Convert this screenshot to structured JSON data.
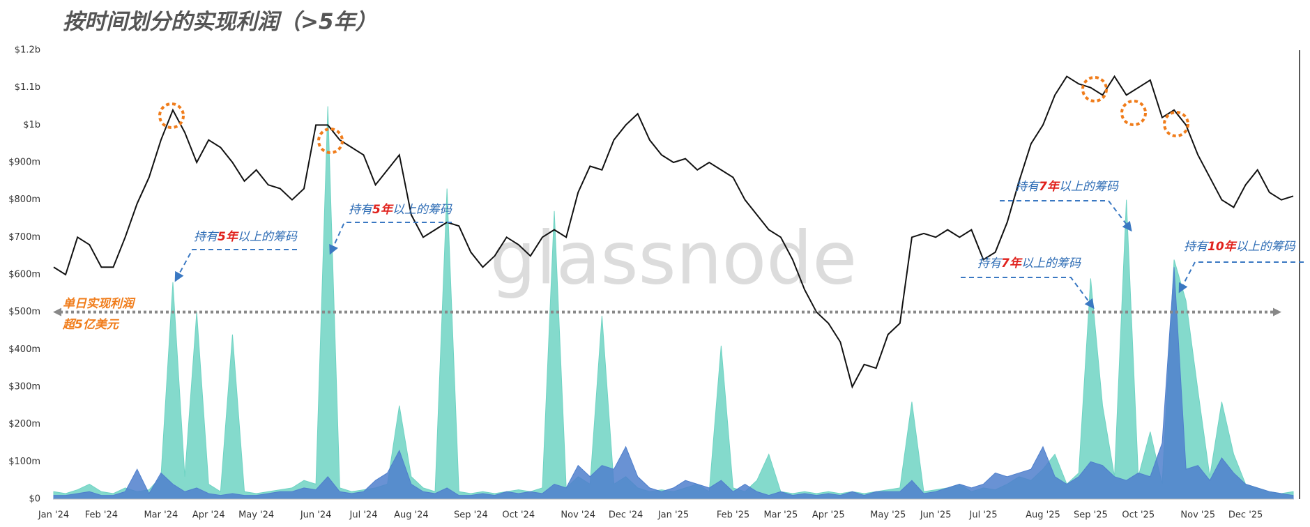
{
  "chart_data": {
    "type": "area",
    "title": "按时间划分的实现利润（>5年）",
    "watermark": "glassnode",
    "categories": [
      "Jan '24",
      null,
      null,
      null,
      "Feb '24",
      null,
      null,
      null,
      null,
      "Mar '24",
      null,
      null,
      null,
      "Apr '24",
      null,
      null,
      null,
      "May '24",
      null,
      null,
      null,
      null,
      "Jun '24",
      null,
      null,
      null,
      "Jul '24",
      null,
      null,
      null,
      "Aug '24",
      null,
      null,
      null,
      null,
      "Sep '24",
      null,
      null,
      null,
      "Oct '24",
      null,
      null,
      null,
      null,
      "Nov '24",
      null,
      null,
      null,
      "Dec '24",
      null,
      null,
      null,
      "Jan '25",
      null,
      null,
      null,
      null,
      "Feb '25",
      null,
      null,
      null,
      "Mar '25",
      null,
      null,
      null,
      "Apr '25",
      null,
      null,
      null,
      null,
      "May '25",
      null,
      null,
      null,
      "Jun '25",
      null,
      null,
      null,
      "Jul '25",
      null,
      null,
      null,
      null,
      "Aug '25",
      null,
      null,
      null,
      "Sep '25",
      null,
      null,
      null,
      "Oct '25",
      null,
      null,
      null,
      null,
      "Nov '25",
      null,
      null,
      null,
      "Dec '25",
      null,
      null,
      null,
      null
    ],
    "series": [
      {
        "type": "area",
        "color": "#6fd3c3",
        "values": [
          20,
          15,
          25,
          40,
          20,
          15,
          30,
          20,
          25,
          60,
          580,
          60,
          500,
          40,
          20,
          440,
          20,
          15,
          20,
          25,
          30,
          50,
          40,
          1050,
          30,
          20,
          25,
          30,
          40,
          250,
          60,
          30,
          20,
          830,
          20,
          15,
          20,
          15,
          20,
          25,
          20,
          30,
          770,
          30,
          60,
          40,
          490,
          40,
          60,
          30,
          20,
          25,
          20,
          30,
          40,
          20,
          410,
          30,
          20,
          50,
          120,
          20,
          15,
          20,
          15,
          20,
          15,
          20,
          15,
          20,
          25,
          30,
          260,
          20,
          25,
          30,
          40,
          20,
          30,
          25,
          40,
          60,
          50,
          80,
          120,
          40,
          70,
          590,
          250,
          60,
          800,
          60,
          180,
          40,
          640,
          530,
          290,
          60,
          260,
          120,
          40,
          30,
          20,
          15,
          20
        ]
      },
      {
        "type": "area",
        "color": "#4f7fcc",
        "values": [
          10,
          10,
          15,
          20,
          10,
          10,
          20,
          80,
          15,
          70,
          40,
          20,
          30,
          15,
          10,
          15,
          10,
          10,
          15,
          20,
          20,
          30,
          25,
          60,
          20,
          15,
          20,
          50,
          70,
          130,
          40,
          20,
          15,
          30,
          10,
          10,
          15,
          10,
          20,
          15,
          20,
          15,
          40,
          30,
          90,
          60,
          90,
          80,
          140,
          60,
          30,
          20,
          30,
          50,
          40,
          30,
          50,
          20,
          40,
          20,
          10,
          20,
          10,
          15,
          10,
          15,
          10,
          20,
          10,
          20,
          20,
          20,
          50,
          15,
          20,
          30,
          40,
          30,
          40,
          70,
          60,
          70,
          80,
          140,
          60,
          40,
          60,
          100,
          90,
          60,
          50,
          70,
          60,
          150,
          620,
          80,
          90,
          50,
          110,
          70,
          40,
          30,
          20,
          15,
          10
        ]
      },
      {
        "type": "line",
        "color": "#111111",
        "values": [
          620,
          600,
          700,
          680,
          620,
          620,
          700,
          790,
          860,
          960,
          1040,
          980,
          900,
          960,
          940,
          900,
          850,
          880,
          840,
          830,
          800,
          830,
          1000,
          1000,
          960,
          940,
          920,
          840,
          880,
          920,
          760,
          700,
          720,
          740,
          730,
          660,
          620,
          650,
          700,
          680,
          650,
          700,
          720,
          700,
          820,
          890,
          880,
          960,
          1000,
          1030,
          960,
          920,
          900,
          910,
          880,
          900,
          880,
          860,
          800,
          760,
          720,
          700,
          640,
          560,
          500,
          470,
          420,
          300,
          360,
          350,
          440,
          470,
          700,
          710,
          700,
          720,
          700,
          720,
          640,
          660,
          740,
          850,
          950,
          1000,
          1080,
          1130,
          1110,
          1100,
          1080,
          1130,
          1080,
          1100,
          1120,
          1020,
          1040,
          1000,
          920,
          860,
          800,
          780,
          840,
          880,
          820,
          800,
          810
        ]
      }
    ],
    "ylim": [
      0,
      1200
    ],
    "yticks": [
      {
        "value": 0,
        "label": "$0"
      },
      {
        "value": 100,
        "label": "$100m"
      },
      {
        "value": 200,
        "label": "$200m"
      },
      {
        "value": 300,
        "label": "$300m"
      },
      {
        "value": 400,
        "label": "$400m"
      },
      {
        "value": 500,
        "label": "$500m"
      },
      {
        "value": 600,
        "label": "$600m"
      },
      {
        "value": 700,
        "label": "$700m"
      },
      {
        "value": 800,
        "label": "$800m"
      },
      {
        "value": 900,
        "label": "$900m"
      },
      {
        "value": 1000,
        "label": "$1b"
      },
      {
        "value": 1100,
        "label": "$1.1b"
      },
      {
        "value": 1200,
        "label": "$1.2b"
      }
    ],
    "grid": false,
    "threshold": {
      "value": 500,
      "label": [
        "单日实现利润",
        "超5亿美元"
      ]
    },
    "annotations": [
      {
        "parts": [
          "持有",
          "5年",
          "以上的筹码"
        ]
      },
      {
        "parts": [
          "持有",
          "5年",
          "以上的筹码"
        ]
      },
      {
        "parts": [
          "持有",
          "7年",
          "以上的筹码"
        ]
      },
      {
        "parts": [
          "持有",
          "7年",
          "以上的筹码"
        ]
      },
      {
        "parts": [
          "持有",
          "10年",
          "以上的筹码"
        ]
      }
    ]
  }
}
